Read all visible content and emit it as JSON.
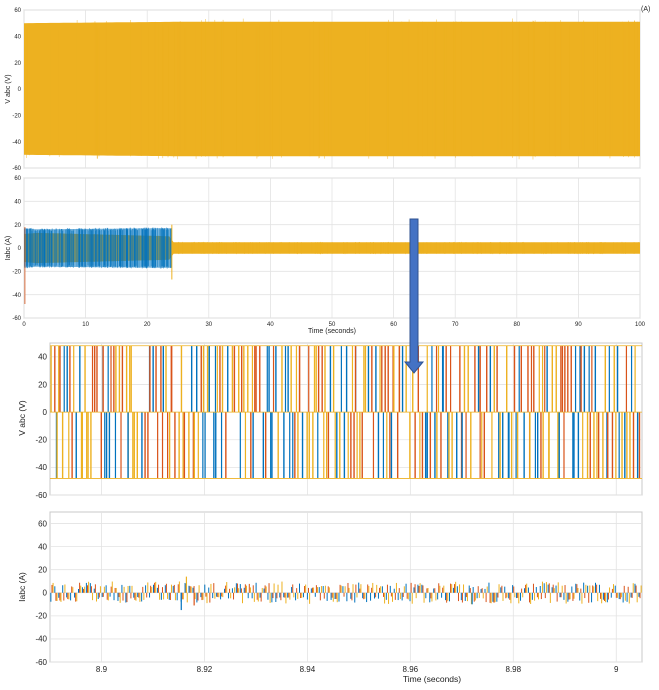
{
  "chart_data": [
    {
      "type": "line",
      "panel": "top-1",
      "title": "",
      "xlabel": "",
      "ylabel": "V abc (V)",
      "xlim": [
        0,
        100
      ],
      "ylim": [
        -60,
        60
      ],
      "yticks": [
        -60,
        -40,
        -20,
        0,
        20,
        40,
        60
      ],
      "xticks": [],
      "corner_label": "(A)",
      "grid": true,
      "series": [
        {
          "color": "#EDB120",
          "envelope": {
            "t": [
              0,
              24,
              100
            ],
            "upper": [
              50,
              51,
              51
            ],
            "lower": [
              -50,
              -51,
              -51
            ]
          }
        }
      ]
    },
    {
      "type": "line",
      "panel": "top-2",
      "title": "",
      "xlabel": "Time (seconds)",
      "ylabel": "Iabc (A)",
      "xlim": [
        0,
        100
      ],
      "ylim": [
        -60,
        60
      ],
      "yticks": [
        -60,
        -40,
        -20,
        0,
        20,
        40,
        60
      ],
      "xticks": [
        0,
        10,
        20,
        30,
        40,
        50,
        60,
        70,
        80,
        90,
        100
      ],
      "grid": true,
      "series": [
        {
          "color": "#EDB120",
          "envelope": {
            "t": [
              0,
              2,
              24,
              24.2,
              100
            ],
            "upper": [
              12,
              13,
              10,
              5,
              5
            ],
            "lower": [
              -12,
              -13,
              -10,
              -5,
              -5
            ]
          }
        },
        {
          "color": "#0072BD",
          "envelope": {
            "t": [
              0,
              2,
              24
            ],
            "upper": [
              17,
              16,
              17
            ],
            "lower": [
              -17,
              -16,
              -17
            ]
          }
        }
      ]
    },
    {
      "type": "line",
      "panel": "zoom-1",
      "title": "",
      "xlabel": "",
      "ylabel": "V abc (V)",
      "xlim": [
        8.89,
        9.005
      ],
      "ylim": [
        -60,
        50
      ],
      "yticks": [
        -60,
        -40,
        -20,
        0,
        20,
        40
      ],
      "xticks": [],
      "grid": true,
      "levels": [
        -48,
        48
      ],
      "series": [
        {
          "color": "#0072BD"
        },
        {
          "color": "#D95319"
        },
        {
          "color": "#EDB120"
        }
      ]
    },
    {
      "type": "line",
      "panel": "zoom-2",
      "title": "",
      "xlabel": "Time (seconds)",
      "ylabel": "Iabc (A)",
      "xlim": [
        8.89,
        9.005
      ],
      "ylim": [
        -60,
        70
      ],
      "yticks": [
        -60,
        -40,
        -20,
        0,
        20,
        40,
        60
      ],
      "xticks": [
        8.9,
        8.92,
        8.94,
        8.96,
        8.98,
        9
      ],
      "grid": true,
      "series": [
        {
          "color": "#0072BD",
          "amplitude": 8
        },
        {
          "color": "#D95319",
          "amplitude": 8
        },
        {
          "color": "#EDB120",
          "amplitude": 9
        }
      ]
    }
  ],
  "annotation": {
    "arrow_color": "#4472C4"
  }
}
